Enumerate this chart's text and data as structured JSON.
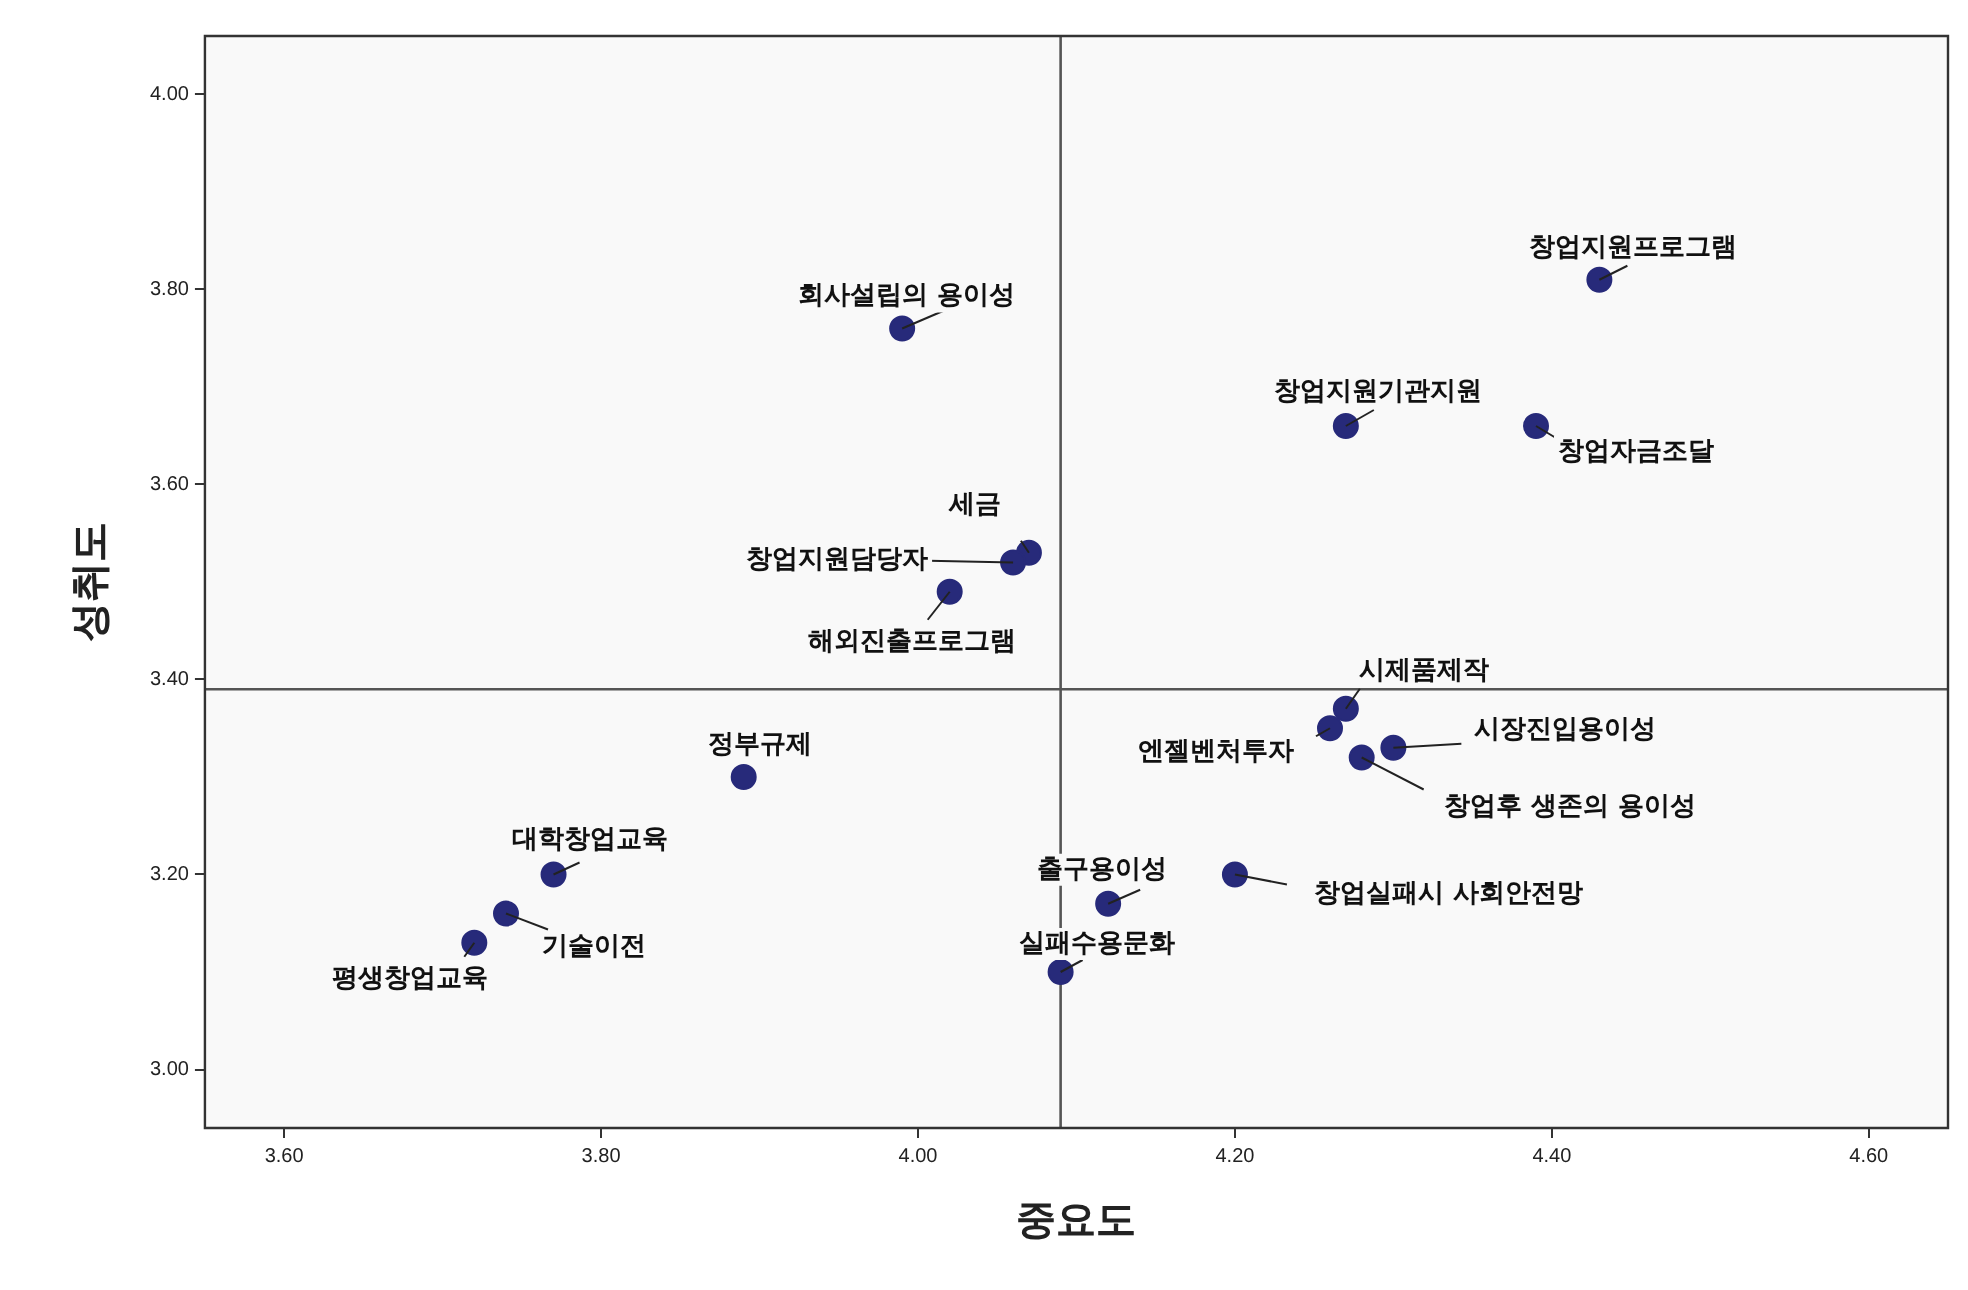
{
  "chart_data": {
    "type": "scatter",
    "xlabel": "중요도",
    "ylabel": "성취도",
    "x": [
      4.43,
      4.27,
      4.39,
      3.99,
      4.07,
      4.06,
      4.02,
      4.27,
      4.26,
      4.3,
      4.28,
      4.2,
      4.12,
      4.09,
      3.89,
      3.77,
      3.74,
      3.72
    ],
    "series": [
      {
        "color": "#272a7a",
        "values": [
          3.81,
          3.66,
          3.66,
          3.76,
          3.53,
          3.52,
          3.49,
          3.37,
          3.35,
          3.33,
          3.32,
          3.2,
          3.17,
          3.1,
          3.3,
          3.2,
          3.16,
          3.13
        ]
      }
    ],
    "annotations": [
      {
        "text": "창업지원프로그램",
        "x": 4.43,
        "y": 3.81
      },
      {
        "text": "창업지원기관지원",
        "x": 4.27,
        "y": 3.66
      },
      {
        "text": "창업자금조달",
        "x": 4.39,
        "y": 3.66
      },
      {
        "text": "회사설립의 용이성",
        "x": 3.99,
        "y": 3.76
      },
      {
        "text": "세금",
        "x": 4.07,
        "y": 3.53
      },
      {
        "text": "창업지원담당자",
        "x": 4.06,
        "y": 3.52
      },
      {
        "text": "해외진출프로그램",
        "x": 4.02,
        "y": 3.49
      },
      {
        "text": "시제품제작",
        "x": 4.27,
        "y": 3.37
      },
      {
        "text": "엔젤벤처투자",
        "x": 4.26,
        "y": 3.35
      },
      {
        "text": "시장진입용이성",
        "x": 4.3,
        "y": 3.33
      },
      {
        "text": "창업후 생존의 용이성",
        "x": 4.28,
        "y": 3.32
      },
      {
        "text": "창업실패시 사회안전망",
        "x": 4.2,
        "y": 3.2
      },
      {
        "text": "출구용이성",
        "x": 4.12,
        "y": 3.17
      },
      {
        "text": "실패수용문화",
        "x": 4.09,
        "y": 3.1
      },
      {
        "text": "정부규제",
        "x": 3.89,
        "y": 3.3
      },
      {
        "text": "대학창업교육",
        "x": 3.77,
        "y": 3.2
      },
      {
        "text": "기술이전",
        "x": 3.74,
        "y": 3.16
      },
      {
        "text": "평생창업교육",
        "x": 3.72,
        "y": 3.13
      }
    ],
    "xlim": [
      3.55,
      4.65
    ],
    "ylim": [
      2.94,
      4.06
    ],
    "xticks": [
      {
        "value": 3.6,
        "label": "3.60"
      },
      {
        "value": 3.8,
        "label": "3.80"
      },
      {
        "value": 4,
        "label": "4.00"
      },
      {
        "value": 4.2,
        "label": "4.20"
      },
      {
        "value": 4.4,
        "label": "4.40"
      },
      {
        "value": 4.6,
        "label": "4.60"
      }
    ],
    "yticks": [
      {
        "value": 3,
        "label": "3.00"
      },
      {
        "value": 3.2,
        "label": "3.20"
      },
      {
        "value": 3.4,
        "label": "3.40"
      },
      {
        "value": 3.6,
        "label": "3.60"
      },
      {
        "value": 3.8,
        "label": "3.80"
      },
      {
        "value": 4,
        "label": "4.00"
      }
    ],
    "ref_lines": [
      {
        "axis": "x",
        "value": 4.09,
        "color": "#555555"
      },
      {
        "axis": "y",
        "value": 3.39,
        "color": "#555555"
      }
    ],
    "legend": false,
    "marker": "circle"
  }
}
